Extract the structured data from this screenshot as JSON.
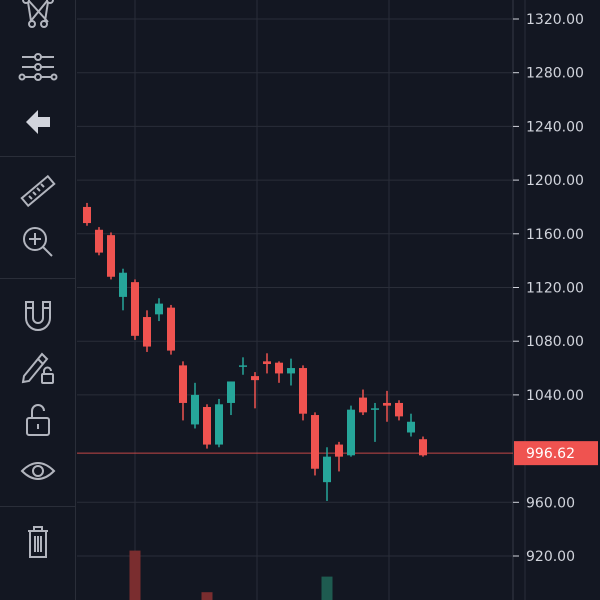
{
  "toolbar": {
    "tools": [
      {
        "name": "pattern-tool-icon"
      },
      {
        "name": "fib-tool-icon"
      },
      {
        "name": "back-arrow-icon"
      },
      {
        "name": "ruler-icon"
      },
      {
        "name": "zoom-in-icon"
      },
      {
        "name": "magnet-icon"
      },
      {
        "name": "lock-drawing-icon"
      },
      {
        "name": "unlock-icon"
      },
      {
        "name": "eye-icon"
      },
      {
        "name": "trash-icon"
      }
    ]
  },
  "colors": {
    "background": "#131722",
    "grid": "#2a2e39",
    "up": "#26a69a",
    "down": "#ef5350",
    "last_price_line": "#ef5350",
    "text": "#d1d4dc"
  },
  "chart_data": {
    "type": "candlestick",
    "y_axis_ticks": [
      "1320.00",
      "1280.00",
      "1240.00",
      "1200.00",
      "1160.00",
      "1120.00",
      "1080.00",
      "1040.00",
      "960.00",
      "920.00"
    ],
    "ylim": [
      900,
      1336
    ],
    "last_price": "996.62",
    "last_price_value": 996.62,
    "candles": [
      {
        "o": 1180,
        "h": 1183,
        "l": 1166,
        "c": 1168
      },
      {
        "o": 1163,
        "h": 1165,
        "l": 1144,
        "c": 1146
      },
      {
        "o": 1159,
        "h": 1161,
        "l": 1126,
        "c": 1128
      },
      {
        "o": 1113,
        "h": 1134,
        "l": 1103,
        "c": 1131
      },
      {
        "o": 1124,
        "h": 1126,
        "l": 1081,
        "c": 1084
      },
      {
        "o": 1098,
        "h": 1103,
        "l": 1072,
        "c": 1076
      },
      {
        "o": 1100,
        "h": 1112,
        "l": 1095,
        "c": 1108
      },
      {
        "o": 1105,
        "h": 1107,
        "l": 1070,
        "c": 1073
      },
      {
        "o": 1062,
        "h": 1065,
        "l": 1021,
        "c": 1034
      },
      {
        "o": 1018,
        "h": 1049,
        "l": 1015,
        "c": 1040
      },
      {
        "o": 1031,
        "h": 1033,
        "l": 1000,
        "c": 1003
      },
      {
        "o": 1003,
        "h": 1037,
        "l": 1001,
        "c": 1033
      },
      {
        "o": 1034,
        "h": 1050,
        "l": 1025,
        "c": 1050
      },
      {
        "o": 1062,
        "h": 1068,
        "l": 1055,
        "c": 1062
      },
      {
        "o": 1054,
        "h": 1057,
        "l": 1030,
        "c": 1051
      },
      {
        "o": 1065,
        "h": 1071,
        "l": 1056,
        "c": 1063
      },
      {
        "o": 1064,
        "h": 1065,
        "l": 1049,
        "c": 1056
      },
      {
        "o": 1056,
        "h": 1067,
        "l": 1047,
        "c": 1060
      },
      {
        "o": 1060,
        "h": 1062,
        "l": 1021,
        "c": 1026
      },
      {
        "o": 1025,
        "h": 1027,
        "l": 980,
        "c": 985
      },
      {
        "o": 975,
        "h": 1001,
        "l": 961,
        "c": 994
      },
      {
        "o": 1003,
        "h": 1005,
        "l": 983,
        "c": 994
      },
      {
        "o": 995,
        "h": 1032,
        "l": 994,
        "c": 1029
      },
      {
        "o": 1038,
        "h": 1044,
        "l": 1025,
        "c": 1027
      },
      {
        "o": 1030,
        "h": 1034,
        "l": 1005,
        "c": 1030
      },
      {
        "o": 1034,
        "h": 1043,
        "l": 1020,
        "c": 1032
      },
      {
        "o": 1034,
        "h": 1036,
        "l": 1021,
        "c": 1024
      },
      {
        "o": 1012,
        "h": 1026,
        "l": 1009,
        "c": 1020
      },
      {
        "o": 1007,
        "h": 1009,
        "l": 994,
        "c": 995
      }
    ],
    "volume_bars": [
      {
        "index": 4,
        "level": 0.95,
        "dir": "down"
      },
      {
        "index": 10,
        "level": 0.15,
        "dir": "down"
      },
      {
        "index": 20,
        "level": 0.45,
        "dir": "up"
      }
    ]
  }
}
